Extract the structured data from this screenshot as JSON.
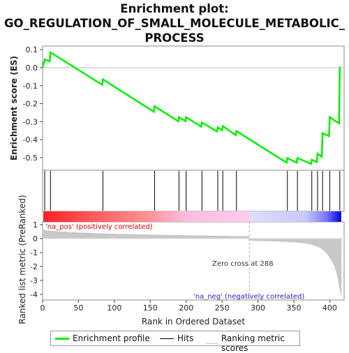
{
  "title_lines": [
    "Enrichment plot:",
    "GO_REGULATION_OF_SMALL_MOLECULE_METABOLIC_",
    "PROCESS"
  ],
  "colors": {
    "es_line": "#00ee00",
    "hits": "#000000",
    "metric": "#c8c8c8",
    "pos": "#ff0000",
    "neg": "#0000ff"
  },
  "legend": {
    "enrichment_profile": "Enrichment profile",
    "hits": "Hits",
    "ranking_metric": "Ranking metric scores"
  },
  "chart_data": {
    "type": "line",
    "xlabel": "Rank in Ordered Dataset",
    "es_ylabel": "Enrichment score (ES)",
    "metric_ylabel": "Ranked list metric (PreRanked)",
    "x_ticks": [
      0,
      50,
      100,
      150,
      200,
      250,
      300,
      350,
      400
    ],
    "es_ticks": [
      0.1,
      0.0,
      -0.1,
      -0.2,
      -0.3,
      -0.4,
      -0.5
    ],
    "metric_ticks": [
      1,
      0,
      -1,
      -2,
      -3,
      -4
    ],
    "xlim": [
      0,
      420
    ],
    "es_ylim": [
      -0.57,
      0.12
    ],
    "metric_ylim": [
      -4.4,
      1.2
    ],
    "total_genes": 416,
    "zero_cross": 288,
    "zero_cross_label": "Zero cross at 288",
    "pos_label": "'na_pos' (positively correlated)",
    "neg_label": "'na_neg' (negatively correlated)",
    "hits": [
      3,
      11,
      84,
      156,
      190,
      200,
      222,
      244,
      251,
      270,
      341,
      355,
      375,
      383,
      390,
      400,
      414
    ],
    "es_points": [
      [
        0,
        0.0
      ],
      [
        3,
        0.045
      ],
      [
        10,
        0.035
      ],
      [
        11,
        0.085
      ],
      [
        83,
        -0.095
      ],
      [
        84,
        -0.065
      ],
      [
        155,
        -0.245
      ],
      [
        156,
        -0.215
      ],
      [
        189,
        -0.298
      ],
      [
        190,
        -0.275
      ],
      [
        199,
        -0.298
      ],
      [
        200,
        -0.275
      ],
      [
        221,
        -0.328
      ],
      [
        222,
        -0.305
      ],
      [
        243,
        -0.355
      ],
      [
        244,
        -0.332
      ],
      [
        250,
        -0.348
      ],
      [
        251,
        -0.325
      ],
      [
        269,
        -0.375
      ],
      [
        270,
        -0.352
      ],
      [
        340,
        -0.528
      ],
      [
        341,
        -0.502
      ],
      [
        354,
        -0.528
      ],
      [
        355,
        -0.502
      ],
      [
        374,
        -0.535
      ],
      [
        375,
        -0.512
      ],
      [
        382,
        -0.525
      ],
      [
        383,
        -0.478
      ],
      [
        389,
        -0.495
      ],
      [
        390,
        -0.365
      ],
      [
        399,
        -0.38
      ],
      [
        400,
        -0.275
      ],
      [
        413,
        -0.31
      ],
      [
        414,
        0.005
      ]
    ],
    "metric_curve": [
      [
        0,
        0.62
      ],
      [
        5,
        0.58
      ],
      [
        20,
        0.5
      ],
      [
        40,
        0.44
      ],
      [
        80,
        0.36
      ],
      [
        120,
        0.3
      ],
      [
        160,
        0.26
      ],
      [
        200,
        0.22
      ],
      [
        250,
        0.18
      ],
      [
        287,
        0.15
      ],
      [
        288,
        -0.12
      ],
      [
        300,
        -0.15
      ],
      [
        330,
        -0.2
      ],
      [
        350,
        -0.25
      ],
      [
        365,
        -0.32
      ],
      [
        375,
        -0.42
      ],
      [
        385,
        -0.6
      ],
      [
        392,
        -0.85
      ],
      [
        398,
        -1.2
      ],
      [
        403,
        -1.6
      ],
      [
        407,
        -2.0
      ],
      [
        410,
        -2.5
      ],
      [
        412,
        -3.0
      ],
      [
        414,
        -3.6
      ],
      [
        416,
        -4.1
      ]
    ]
  }
}
